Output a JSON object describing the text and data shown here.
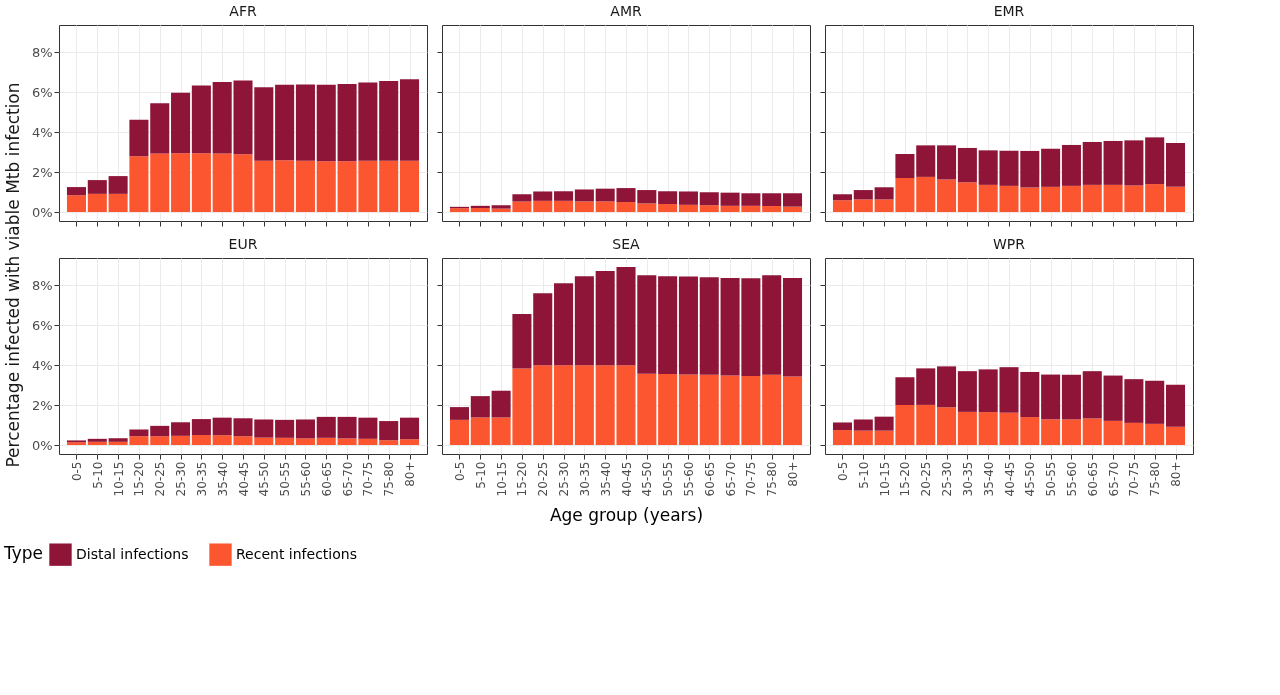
{
  "chart_data": [
    {
      "type": "bar",
      "title": "AFR",
      "ylabel": "Percentage infected with viable Mtb infection",
      "legend_title": "Type",
      "legend": "bottom",
      "stacked": true,
      "grid": true,
      "tick_labels": "y",
      "categories": [
        "0-5",
        "5-10",
        "10-15",
        "15-20",
        "20-25",
        "25-30",
        "30-35",
        "35-40",
        "40-45",
        "45-50",
        "50-55",
        "55-60",
        "60-65",
        "65-70",
        "70-75",
        "75-80",
        "80+"
      ],
      "ylim": [
        -0.45,
        9.37
      ],
      "yticks": [
        {
          "value": 0,
          "label": "0%"
        },
        {
          "value": 2,
          "label": "2%"
        },
        {
          "value": 4,
          "label": "4%"
        },
        {
          "value": 6,
          "label": "6%"
        },
        {
          "value": 8,
          "label": "8%"
        }
      ],
      "series": [
        {
          "name": "Recent infections",
          "color": "#fc5630",
          "values": [
            0.84,
            0.91,
            0.91,
            2.79,
            2.93,
            2.95,
            2.95,
            2.93,
            2.9,
            2.57,
            2.59,
            2.57,
            2.54,
            2.54,
            2.57,
            2.57,
            2.57
          ]
        },
        {
          "name": "Distal infections",
          "color": "#8e1538",
          "values": [
            0.41,
            0.69,
            0.89,
            1.83,
            2.52,
            3.03,
            3.39,
            3.59,
            3.69,
            3.68,
            3.79,
            3.82,
            3.84,
            3.88,
            3.92,
            3.99,
            4.08
          ]
        }
      ]
    },
    {
      "type": "bar",
      "title": "AMR",
      "stacked": true,
      "grid": true,
      "tick_labels": false,
      "categories": [
        "0-5",
        "5-10",
        "10-15",
        "15-20",
        "20-25",
        "25-30",
        "30-35",
        "35-40",
        "40-45",
        "45-50",
        "50-55",
        "55-60",
        "60-65",
        "65-70",
        "70-75",
        "75-80",
        "80+"
      ],
      "ylim": [
        -0.45,
        9.37
      ],
      "yticks": [
        {
          "value": 0,
          "label": "0%"
        },
        {
          "value": 2,
          "label": "2%"
        },
        {
          "value": 4,
          "label": "4%"
        },
        {
          "value": 6,
          "label": "6%"
        },
        {
          "value": 8,
          "label": "8%"
        }
      ],
      "series": [
        {
          "name": "Recent infections",
          "color": "#fc5630",
          "values": [
            0.19,
            0.2,
            0.17,
            0.53,
            0.56,
            0.56,
            0.53,
            0.53,
            0.5,
            0.43,
            0.4,
            0.36,
            0.34,
            0.31,
            0.31,
            0.3,
            0.27
          ]
        },
        {
          "name": "Distal infections",
          "color": "#8e1538",
          "values": [
            0.07,
            0.11,
            0.17,
            0.36,
            0.47,
            0.48,
            0.6,
            0.64,
            0.7,
            0.67,
            0.64,
            0.67,
            0.65,
            0.66,
            0.63,
            0.64,
            0.67
          ]
        }
      ]
    },
    {
      "type": "bar",
      "title": "EMR",
      "stacked": true,
      "grid": true,
      "tick_labels": false,
      "categories": [
        "0-5",
        "5-10",
        "10-15",
        "15-20",
        "20-25",
        "25-30",
        "30-35",
        "35-40",
        "40-45",
        "45-50",
        "50-55",
        "55-60",
        "60-65",
        "65-70",
        "70-75",
        "75-80",
        "80+"
      ],
      "ylim": [
        -0.45,
        9.37
      ],
      "yticks": [
        {
          "value": 0,
          "label": "0%"
        },
        {
          "value": 2,
          "label": "2%"
        },
        {
          "value": 4,
          "label": "4%"
        },
        {
          "value": 6,
          "label": "6%"
        },
        {
          "value": 8,
          "label": "8%"
        }
      ],
      "series": [
        {
          "name": "Recent infections",
          "color": "#fc5630",
          "values": [
            0.59,
            0.63,
            0.63,
            1.71,
            1.76,
            1.63,
            1.49,
            1.36,
            1.31,
            1.23,
            1.26,
            1.31,
            1.36,
            1.36,
            1.33,
            1.4,
            1.26
          ]
        },
        {
          "name": "Distal infections",
          "color": "#8e1538",
          "values": [
            0.3,
            0.47,
            0.61,
            1.2,
            1.58,
            1.71,
            1.72,
            1.73,
            1.76,
            1.83,
            1.91,
            2.05,
            2.15,
            2.2,
            2.26,
            2.34,
            2.2
          ]
        }
      ]
    },
    {
      "type": "bar",
      "title": "EUR",
      "stacked": true,
      "grid": true,
      "categories": [
        "0-5",
        "5-10",
        "10-15",
        "15-20",
        "20-25",
        "25-30",
        "30-35",
        "35-40",
        "40-45",
        "45-50",
        "50-55",
        "55-60",
        "60-65",
        "65-70",
        "70-75",
        "75-80",
        "80+"
      ],
      "ylim": [
        -0.45,
        9.37
      ],
      "yticks": [
        {
          "value": 0,
          "label": "0%"
        },
        {
          "value": 2,
          "label": "2%"
        },
        {
          "value": 4,
          "label": "4%"
        },
        {
          "value": 6,
          "label": "6%"
        },
        {
          "value": 8,
          "label": "8%"
        }
      ],
      "series": [
        {
          "name": "Recent infections",
          "color": "#fc5630",
          "values": [
            0.14,
            0.16,
            0.16,
            0.44,
            0.44,
            0.46,
            0.5,
            0.49,
            0.44,
            0.37,
            0.36,
            0.33,
            0.36,
            0.33,
            0.31,
            0.24,
            0.29
          ]
        },
        {
          "name": "Distal infections",
          "color": "#8e1538",
          "values": [
            0.09,
            0.15,
            0.18,
            0.34,
            0.52,
            0.68,
            0.8,
            0.88,
            0.9,
            0.91,
            0.9,
            0.95,
            1.05,
            1.08,
            1.06,
            0.96,
            1.08
          ]
        }
      ]
    },
    {
      "type": "bar",
      "title": "SEA",
      "xlabel": "Age group (years)",
      "stacked": true,
      "grid": true,
      "tick_labels": "x",
      "categories": [
        "0-5",
        "5-10",
        "10-15",
        "15-20",
        "20-25",
        "25-30",
        "30-35",
        "35-40",
        "40-45",
        "45-50",
        "50-55",
        "55-60",
        "60-65",
        "65-70",
        "70-75",
        "75-80",
        "80+"
      ],
      "ylim": [
        -0.45,
        9.37
      ],
      "yticks": [
        {
          "value": 0,
          "label": "0%"
        },
        {
          "value": 2,
          "label": "2%"
        },
        {
          "value": 4,
          "label": "4%"
        },
        {
          "value": 6,
          "label": "6%"
        },
        {
          "value": 8,
          "label": "8%"
        }
      ],
      "series": [
        {
          "name": "Recent infections",
          "color": "#fc5630",
          "values": [
            1.26,
            1.38,
            1.38,
            3.83,
            4.0,
            4.0,
            4.0,
            4.0,
            4.0,
            3.57,
            3.56,
            3.53,
            3.52,
            3.48,
            3.46,
            3.52,
            3.43
          ]
        },
        {
          "name": "Distal infections",
          "color": "#8e1538",
          "values": [
            0.64,
            1.07,
            1.34,
            2.74,
            3.6,
            4.11,
            4.45,
            4.72,
            4.92,
            4.93,
            4.89,
            4.91,
            4.89,
            4.89,
            4.89,
            4.98,
            4.94
          ]
        }
      ]
    },
    {
      "type": "bar",
      "title": "WPR",
      "stacked": true,
      "grid": true,
      "tick_labels": "x",
      "categories": [
        "0-5",
        "5-10",
        "10-15",
        "15-20",
        "20-25",
        "25-30",
        "30-35",
        "35-40",
        "40-45",
        "45-50",
        "50-55",
        "55-60",
        "60-65",
        "65-70",
        "70-75",
        "75-80",
        "80+"
      ],
      "ylim": [
        -0.45,
        9.37
      ],
      "yticks": [
        {
          "value": 0,
          "label": "0%"
        },
        {
          "value": 2,
          "label": "2%"
        },
        {
          "value": 4,
          "label": "4%"
        },
        {
          "value": 6,
          "label": "6%"
        },
        {
          "value": 8,
          "label": "8%"
        }
      ],
      "series": [
        {
          "name": "Recent infections",
          "color": "#fc5630",
          "values": [
            0.75,
            0.72,
            0.72,
            2.0,
            2.01,
            1.89,
            1.66,
            1.65,
            1.62,
            1.4,
            1.29,
            1.28,
            1.33,
            1.21,
            1.11,
            1.06,
            0.92
          ]
        },
        {
          "name": "Distal infections",
          "color": "#8e1538",
          "values": [
            0.38,
            0.56,
            0.7,
            1.39,
            1.83,
            2.05,
            2.04,
            2.14,
            2.28,
            2.26,
            2.24,
            2.24,
            2.37,
            2.27,
            2.19,
            2.16,
            2.1
          ]
        }
      ]
    }
  ]
}
